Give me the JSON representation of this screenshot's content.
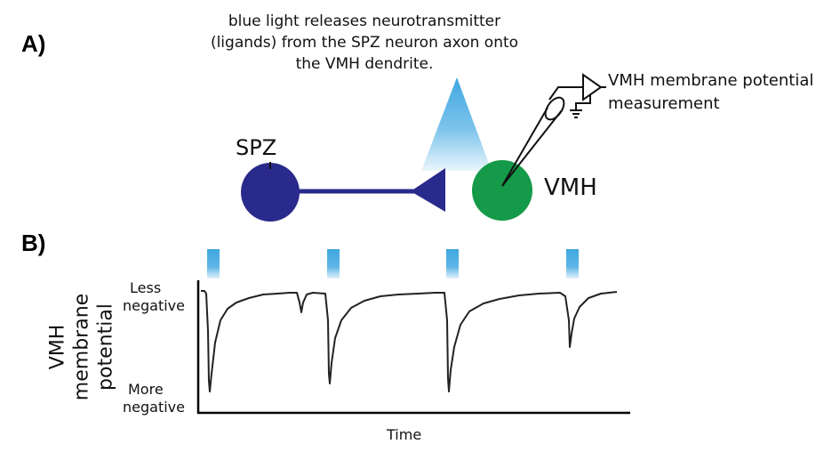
{
  "panel_a": {
    "label": "A)",
    "caption": [
      "blue light releases neurotransmitter",
      "(ligands) from the SPZ neuron axon onto",
      "the VMH dendrite."
    ],
    "spz_label": "SPZ",
    "vmh_label": "VMH",
    "measurement_label": [
      "VMH membrane potential",
      "measurement"
    ],
    "colors": {
      "spz": "#2a2a8c",
      "vmh": "#149a48",
      "light": "#3fa8e0"
    }
  },
  "panel_b": {
    "label": "B)",
    "ylabel": [
      "VMH",
      "membrane",
      "potential"
    ],
    "less_negative": [
      "Less",
      "negative"
    ],
    "more_negative": [
      "More",
      "negative"
    ],
    "xlabel": "Time"
  }
}
